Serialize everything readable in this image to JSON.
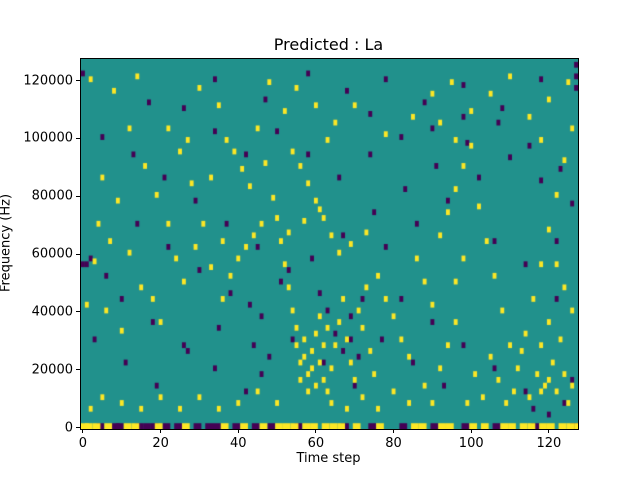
{
  "chart_data": {
    "type": "heatmap",
    "title": "Predicted : La",
    "xlabel": "Time step",
    "ylabel": "Frequency (Hz)",
    "x_range": [
      -0.5,
      127.5
    ],
    "y_range_hz": [
      -500,
      127500
    ],
    "x_ticks": [
      0,
      20,
      40,
      60,
      80,
      100,
      120
    ],
    "y_ticks": [
      0,
      20000,
      40000,
      60000,
      80000,
      100000,
      120000
    ],
    "grid": {
      "cols": 128,
      "rows": 128,
      "hz_per_row": 1000
    },
    "colors": {
      "background": "#21918c",
      "high": "#fde725",
      "low": "#440154",
      "spine": "#000000"
    },
    "legend": false,
    "cells_high": [
      [
        2,
        120
      ],
      [
        8,
        116
      ],
      [
        14,
        121
      ],
      [
        22,
        103
      ],
      [
        30,
        117
      ],
      [
        35,
        111
      ],
      [
        48,
        119
      ],
      [
        52,
        109
      ],
      [
        55,
        117
      ],
      [
        60,
        111
      ],
      [
        65,
        105
      ],
      [
        70,
        111
      ],
      [
        85,
        107
      ],
      [
        90,
        115
      ],
      [
        95,
        119
      ],
      [
        100,
        109
      ],
      [
        105,
        115
      ],
      [
        110,
        121
      ],
      [
        115,
        107
      ],
      [
        120,
        113
      ],
      [
        125,
        119
      ],
      [
        12,
        103
      ],
      [
        27,
        99
      ],
      [
        45,
        103
      ],
      [
        63,
        99
      ],
      [
        78,
        101
      ],
      [
        92,
        105
      ],
      [
        118,
        99
      ],
      [
        25,
        95
      ],
      [
        37,
        99
      ],
      [
        54,
        95
      ],
      [
        96,
        99
      ],
      [
        126,
        103
      ],
      [
        5,
        86
      ],
      [
        9,
        78
      ],
      [
        16,
        90
      ],
      [
        19,
        80
      ],
      [
        22,
        70
      ],
      [
        28,
        84
      ],
      [
        33,
        86
      ],
      [
        39,
        95
      ],
      [
        41,
        89
      ],
      [
        43,
        83
      ],
      [
        47,
        91
      ],
      [
        49,
        79
      ],
      [
        4,
        70
      ],
      [
        7,
        64
      ],
      [
        12,
        60
      ],
      [
        3,
        57
      ],
      [
        31,
        70
      ],
      [
        36,
        64
      ],
      [
        44,
        66
      ],
      [
        46,
        70
      ],
      [
        50,
        72
      ],
      [
        53,
        67
      ],
      [
        57,
        71
      ],
      [
        61,
        75
      ],
      [
        64,
        66
      ],
      [
        62,
        72
      ],
      [
        60,
        78
      ],
      [
        58,
        84
      ],
      [
        56,
        90
      ],
      [
        66,
        60
      ],
      [
        69,
        63
      ],
      [
        73,
        67
      ],
      [
        76,
        52
      ],
      [
        78,
        44
      ],
      [
        80,
        38
      ],
      [
        82,
        30
      ],
      [
        84,
        24
      ],
      [
        86,
        58
      ],
      [
        88,
        50
      ],
      [
        90,
        42
      ],
      [
        92,
        66
      ],
      [
        94,
        74
      ],
      [
        96,
        82
      ],
      [
        98,
        90
      ],
      [
        100,
        97
      ],
      [
        102,
        76
      ],
      [
        104,
        64
      ],
      [
        106,
        52
      ],
      [
        108,
        40
      ],
      [
        110,
        28
      ],
      [
        112,
        20
      ],
      [
        114,
        32
      ],
      [
        116,
        44
      ],
      [
        118,
        56
      ],
      [
        120,
        68
      ],
      [
        122,
        80
      ],
      [
        124,
        92
      ],
      [
        126,
        40
      ],
      [
        124,
        48
      ],
      [
        122,
        56
      ],
      [
        120,
        36
      ],
      [
        118,
        28
      ],
      [
        98,
        58
      ],
      [
        96,
        50
      ],
      [
        96,
        36
      ],
      [
        94,
        28
      ],
      [
        92,
        20
      ],
      [
        1,
        42
      ],
      [
        6,
        40
      ],
      [
        10,
        33
      ],
      [
        15,
        48
      ],
      [
        18,
        44
      ],
      [
        20,
        36
      ],
      [
        24,
        58
      ],
      [
        26,
        50
      ],
      [
        29,
        62
      ],
      [
        33,
        55
      ],
      [
        36,
        44
      ],
      [
        38,
        52
      ],
      [
        40,
        58
      ],
      [
        42,
        62
      ],
      [
        51,
        64
      ],
      [
        52,
        56
      ],
      [
        53,
        48
      ],
      [
        54,
        40
      ],
      [
        55,
        34
      ],
      [
        55,
        28
      ],
      [
        56,
        22
      ],
      [
        56,
        16
      ],
      [
        57,
        30
      ],
      [
        57,
        24
      ],
      [
        58,
        18
      ],
      [
        58,
        12
      ],
      [
        59,
        26
      ],
      [
        59,
        20
      ],
      [
        60,
        32
      ],
      [
        60,
        14
      ],
      [
        61,
        38
      ],
      [
        61,
        22
      ],
      [
        62,
        28
      ],
      [
        62,
        16
      ],
      [
        63,
        34
      ],
      [
        63,
        12
      ],
      [
        64,
        20
      ],
      [
        65,
        28
      ],
      [
        66,
        36
      ],
      [
        67,
        44
      ],
      [
        68,
        30
      ],
      [
        69,
        22
      ],
      [
        70,
        16
      ],
      [
        71,
        40
      ],
      [
        72,
        34
      ],
      [
        73,
        48
      ],
      [
        74,
        26
      ],
      [
        75,
        18
      ],
      [
        45,
        12
      ],
      [
        40,
        8
      ],
      [
        35,
        6
      ],
      [
        30,
        10
      ],
      [
        25,
        6
      ],
      [
        20,
        10
      ],
      [
        15,
        6
      ],
      [
        10,
        8
      ],
      [
        5,
        10
      ],
      [
        2,
        6
      ],
      [
        50,
        8
      ],
      [
        99,
        8
      ],
      [
        101,
        18
      ],
      [
        103,
        10
      ],
      [
        105,
        24
      ],
      [
        107,
        16
      ],
      [
        109,
        8
      ],
      [
        111,
        12
      ],
      [
        113,
        26
      ],
      [
        115,
        10
      ],
      [
        117,
        18
      ],
      [
        119,
        14
      ],
      [
        121,
        22
      ],
      [
        123,
        30
      ],
      [
        118,
        12
      ],
      [
        120,
        16
      ],
      [
        122,
        12
      ],
      [
        124,
        18
      ],
      [
        126,
        14
      ],
      [
        125,
        8
      ],
      [
        90,
        8
      ],
      [
        88,
        14
      ],
      [
        84,
        8
      ],
      [
        80,
        12
      ],
      [
        76,
        6
      ],
      [
        72,
        10
      ],
      [
        68,
        6
      ],
      [
        64,
        8
      ]
    ],
    "cells_low": [
      [
        0,
        122
      ],
      [
        17,
        112
      ],
      [
        34,
        120
      ],
      [
        47,
        113
      ],
      [
        58,
        122
      ],
      [
        68,
        116
      ],
      [
        78,
        120
      ],
      [
        88,
        112
      ],
      [
        98,
        118
      ],
      [
        108,
        110
      ],
      [
        118,
        120
      ],
      [
        127,
        125
      ],
      [
        127,
        121
      ],
      [
        127,
        117
      ],
      [
        5,
        100
      ],
      [
        13,
        94
      ],
      [
        21,
        86
      ],
      [
        29,
        78
      ],
      [
        37,
        70
      ],
      [
        45,
        62
      ],
      [
        53,
        54
      ],
      [
        61,
        46
      ],
      [
        69,
        38
      ],
      [
        77,
        30
      ],
      [
        85,
        22
      ],
      [
        93,
        14
      ],
      [
        3,
        30
      ],
      [
        11,
        22
      ],
      [
        19,
        14
      ],
      [
        27,
        26
      ],
      [
        35,
        34
      ],
      [
        43,
        42
      ],
      [
        51,
        50
      ],
      [
        59,
        58
      ],
      [
        67,
        66
      ],
      [
        75,
        74
      ],
      [
        83,
        82
      ],
      [
        91,
        90
      ],
      [
        99,
        98
      ],
      [
        107,
        105
      ],
      [
        115,
        97
      ],
      [
        123,
        89
      ],
      [
        14,
        70
      ],
      [
        22,
        62
      ],
      [
        30,
        54
      ],
      [
        38,
        46
      ],
      [
        46,
        38
      ],
      [
        54,
        30
      ],
      [
        62,
        22
      ],
      [
        70,
        14
      ],
      [
        78,
        62
      ],
      [
        86,
        70
      ],
      [
        94,
        78
      ],
      [
        102,
        86
      ],
      [
        110,
        93
      ],
      [
        118,
        85
      ],
      [
        126,
        77
      ],
      [
        6,
        52
      ],
      [
        2,
        58
      ],
      [
        0,
        56
      ],
      [
        1,
        56
      ],
      [
        10,
        44
      ],
      [
        18,
        36
      ],
      [
        26,
        28
      ],
      [
        34,
        20
      ],
      [
        42,
        12
      ],
      [
        82,
        44
      ],
      [
        90,
        36
      ],
      [
        98,
        28
      ],
      [
        106,
        20
      ],
      [
        114,
        12
      ],
      [
        122,
        44
      ],
      [
        74,
        94
      ],
      [
        66,
        86
      ],
      [
        58,
        94
      ],
      [
        50,
        102
      ],
      [
        42,
        94
      ],
      [
        34,
        102
      ],
      [
        26,
        110
      ],
      [
        74,
        108
      ],
      [
        82,
        100
      ],
      [
        90,
        103
      ],
      [
        98,
        107
      ],
      [
        106,
        64
      ],
      [
        114,
        56
      ],
      [
        122,
        64
      ],
      [
        126,
        16
      ],
      [
        124,
        8
      ],
      [
        120,
        4
      ],
      [
        116,
        6
      ],
      [
        65,
        32
      ],
      [
        67,
        26
      ],
      [
        69,
        30
      ],
      [
        71,
        24
      ],
      [
        63,
        40
      ],
      [
        72,
        44
      ],
      [
        48,
        24
      ],
      [
        46,
        18
      ],
      [
        44,
        28
      ]
    ],
    "bottom_band_high_x": [
      0,
      1,
      3,
      6,
      11,
      13,
      19,
      26,
      36,
      41,
      46,
      50,
      52,
      54,
      57,
      59,
      62,
      64,
      66,
      70,
      76,
      85,
      87,
      92,
      94,
      100,
      103,
      108,
      110,
      113,
      115,
      118,
      120,
      123,
      125,
      127
    ],
    "bottom_band_low_x": [
      4,
      8,
      9,
      14,
      16,
      18,
      21,
      24,
      29,
      32,
      34,
      39,
      44,
      48,
      55,
      67,
      74,
      82,
      90,
      98,
      106,
      116,
      126
    ]
  }
}
